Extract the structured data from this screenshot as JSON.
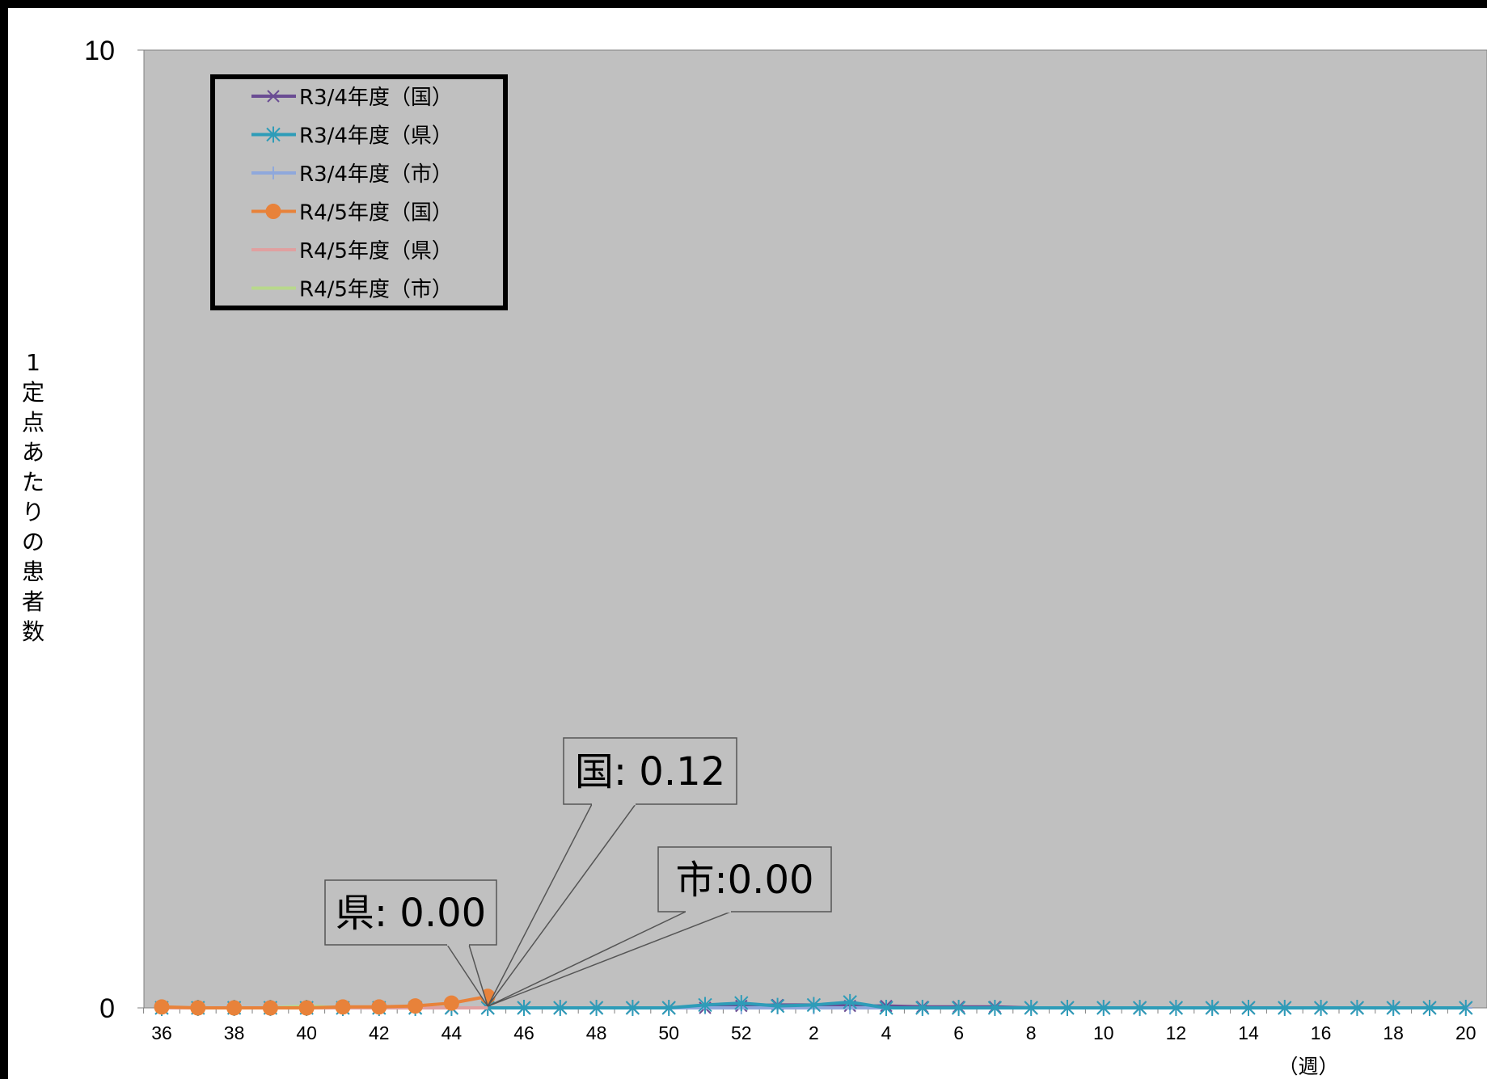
{
  "chart_data": {
    "type": "line",
    "xlabel": "（週）",
    "ylabel": "1定点あたりの患者数",
    "ylim": [
      0,
      10
    ],
    "y_ticks": [
      "0",
      "10"
    ],
    "x_tick_labels": [
      "36",
      "38",
      "40",
      "42",
      "44",
      "46",
      "48",
      "50",
      "52",
      "2",
      "4",
      "6",
      "8",
      "10",
      "12",
      "14",
      "16",
      "18",
      "20"
    ],
    "weeks": [
      36,
      37,
      38,
      39,
      40,
      41,
      42,
      43,
      44,
      45,
      46,
      47,
      48,
      49,
      50,
      51,
      52,
      1,
      2,
      3,
      4,
      5,
      6,
      7,
      8,
      9,
      10,
      11,
      12,
      13,
      14,
      15,
      16,
      17,
      18,
      19,
      20
    ],
    "grid": false,
    "legend_position": "top-left",
    "background": "#c0c0c0",
    "series": [
      {
        "name": "R3/4年度（国）",
        "color": "#6a4c93",
        "marker": "x",
        "values": [
          0,
          0,
          0,
          0,
          0,
          0,
          0,
          0,
          0,
          0,
          0,
          0,
          0,
          0,
          0,
          0,
          0.02,
          0.03,
          0.03,
          0.02,
          0.02,
          0.01,
          0.01,
          0.01,
          0,
          0,
          0,
          0,
          0,
          0,
          0,
          0,
          0,
          0,
          0,
          0,
          0
        ]
      },
      {
        "name": "R3/4年度（県）",
        "color": "#2e9cb8",
        "marker": "asterisk",
        "values": [
          0,
          0,
          0,
          0,
          0,
          0,
          0,
          0,
          0,
          0,
          0,
          0,
          0,
          0,
          0,
          0.03,
          0.05,
          0.02,
          0.03,
          0.06,
          0,
          0,
          0,
          0,
          0,
          0,
          0,
          0,
          0,
          0,
          0,
          0,
          0,
          0,
          0,
          0,
          0
        ]
      },
      {
        "name": "R3/4年度（市）",
        "color": "#8fa8dc",
        "marker": "plus",
        "values": [
          0,
          0,
          0,
          0,
          0,
          0,
          0,
          0,
          0,
          0,
          0,
          0,
          0,
          0,
          0,
          0,
          0,
          0,
          0,
          0,
          0,
          0,
          0,
          0,
          0,
          0,
          0,
          0,
          0,
          0,
          0,
          0,
          0,
          0,
          0,
          0,
          0
        ]
      },
      {
        "name": "R4/5年度（国）",
        "color": "#e8823a",
        "marker": "circle",
        "values": [
          0.01,
          0,
          0,
          0,
          0,
          0.01,
          0.01,
          0.02,
          0.05,
          0.12
        ]
      },
      {
        "name": "R4/5年度（県）",
        "color": "#e0a0a0",
        "marker": "none",
        "values": [
          0,
          0,
          0,
          0,
          0,
          0,
          0,
          0,
          0,
          0
        ]
      },
      {
        "name": "R4/5年度（市）",
        "color": "#b8d88c",
        "marker": "none",
        "values": [
          0,
          0,
          0,
          0,
          0.02,
          0,
          0,
          0,
          0,
          0
        ]
      }
    ],
    "annotations": [
      {
        "label": "国",
        "value": "0.12",
        "text": "国: 0.12"
      },
      {
        "label": "県",
        "value": "0.00",
        "text": "県: 0.00"
      },
      {
        "label": "市",
        "value": "0.00",
        "text": "市:0.00"
      }
    ]
  }
}
